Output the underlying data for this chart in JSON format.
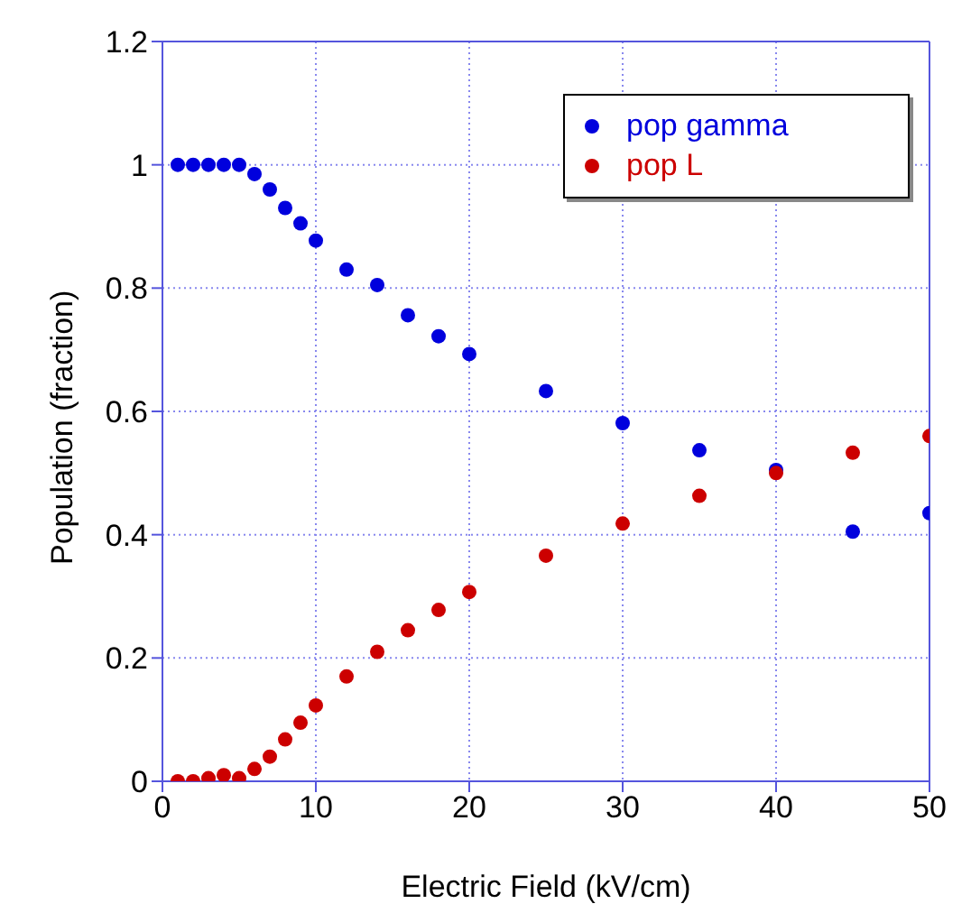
{
  "chart_data": {
    "type": "scatter",
    "xlabel": "Electric Field (kV/cm)",
    "ylabel": "Population (fraction)",
    "x": [
      1,
      2,
      3,
      4,
      5,
      6,
      7,
      8,
      9,
      10,
      12,
      14,
      16,
      18,
      20,
      25,
      30,
      35,
      40,
      45,
      50
    ],
    "series": [
      {
        "name": "pop gamma",
        "color": "#0000dd",
        "values": [
          1,
          1,
          1,
          1,
          1,
          0.985,
          0.96,
          0.93,
          0.905,
          0.877,
          0.83,
          0.805,
          0.756,
          0.722,
          0.693,
          0.633,
          0.581,
          0.537,
          0.505,
          0.405,
          0.435
        ]
      },
      {
        "name": "pop L",
        "color": "#cc0000",
        "values": [
          0,
          0,
          0.005,
          0.01,
          0.005,
          0.02,
          0.04,
          0.068,
          0.095,
          0.123,
          0.17,
          0.21,
          0.245,
          0.278,
          0.307,
          0.366,
          0.418,
          0.463,
          0.5,
          0.533,
          0.56
        ]
      }
    ],
    "xlim": [
      0,
      50
    ],
    "xticks": [
      0,
      10,
      20,
      30,
      40,
      50
    ],
    "ylim": [
      0,
      1.2
    ],
    "yticks": [
      0,
      0.2,
      0.4,
      0.6,
      0.8,
      1,
      1.2
    ],
    "grid": true,
    "legend": "top right",
    "marker": "circle"
  }
}
